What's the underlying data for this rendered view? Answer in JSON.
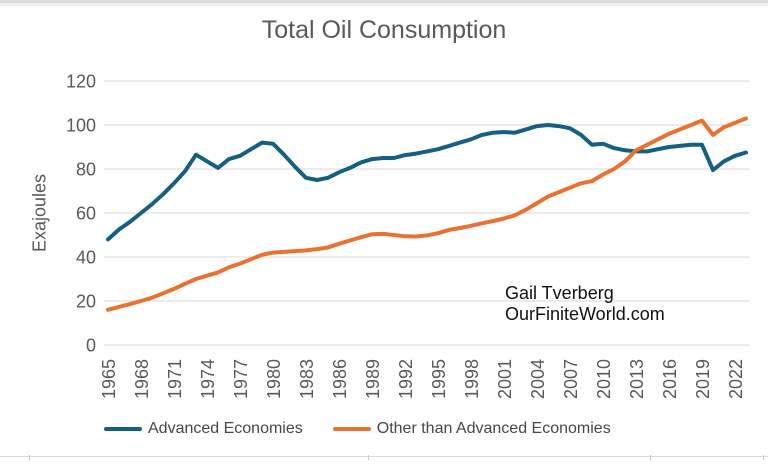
{
  "colors": {
    "background": "#FFFFFF",
    "gridline": "#D9D9D9",
    "axis_text": "#595959",
    "title_text": "#595959",
    "legend_text": "#474747",
    "annotation_text": "#111111",
    "sheet_line": "#D9D9D9"
  },
  "chart_data": {
    "type": "line",
    "title": "Total Oil Consumption",
    "xlabel": "",
    "ylabel": "Exajoules",
    "ylim": [
      0,
      120
    ],
    "y_ticks": [
      0,
      20,
      40,
      60,
      80,
      100,
      120
    ],
    "x_start": 1965,
    "x_end": 2023,
    "x_step": 1,
    "x_tick_labels": [
      "1965",
      "1968",
      "1971",
      "1974",
      "1977",
      "1980",
      "1983",
      "1986",
      "1989",
      "1992",
      "1995",
      "1998",
      "2001",
      "2004",
      "2007",
      "2010",
      "2013",
      "2016",
      "2019",
      "2022"
    ],
    "grid": "horizontal-only",
    "legend_position": "bottom",
    "annotation": {
      "line1": "Gail Tverberg",
      "line2": "OurFiniteWorld.com"
    },
    "series": [
      {
        "name": "Advanced Economies",
        "color": "#156082",
        "values": [
          48,
          52.5,
          56,
          60,
          64,
          68.5,
          73.5,
          79,
          86.5,
          83.5,
          80.5,
          84.5,
          86,
          89,
          92,
          91.5,
          86.5,
          81,
          76,
          75,
          76,
          78.5,
          80.5,
          83,
          84.5,
          85,
          85,
          86.3,
          87,
          88,
          89,
          90.5,
          92,
          93.5,
          95.5,
          96.5,
          96.8,
          96.5,
          98,
          99.5,
          100,
          99.5,
          98.5,
          95.5,
          91,
          91.5,
          89.5,
          88.5,
          88,
          88,
          89,
          90,
          90.5,
          91,
          91,
          79.5,
          83.5,
          86,
          87.5
        ]
      },
      {
        "name": "Other than Advanced Economies",
        "color": "#E97132",
        "values": [
          16,
          17.3,
          18.6,
          20,
          21.5,
          23.5,
          25.5,
          27.8,
          30,
          31.5,
          33,
          35.3,
          37,
          39,
          41,
          42,
          42.3,
          42.7,
          43,
          43.6,
          44.3,
          46,
          47.5,
          49,
          50.3,
          50.5,
          50,
          49.4,
          49.3,
          49.8,
          50.8,
          52.3,
          53.2,
          54.2,
          55.3,
          56.3,
          57.5,
          59,
          61.5,
          64.5,
          67.5,
          69.5,
          71.5,
          73.5,
          74.5,
          77.5,
          80,
          83.5,
          88.5,
          91,
          93.5,
          96,
          98,
          100,
          102,
          95.5,
          99,
          101,
          103
        ]
      }
    ]
  }
}
